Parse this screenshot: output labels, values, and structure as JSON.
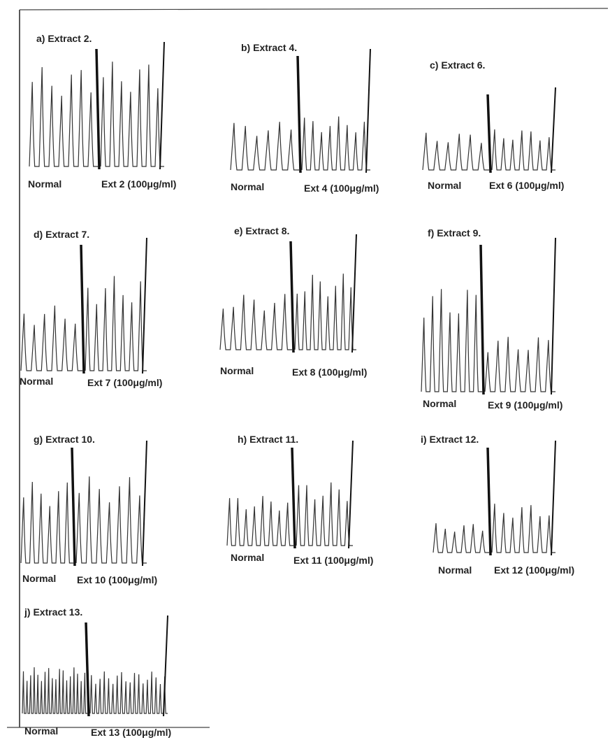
{
  "panels": [
    {
      "title": "a)  Extract 2.",
      "normal_label": "Normal",
      "ext_label": "Ext 2 (100μg/ml)"
    },
    {
      "title": "b)  Extract 4.",
      "normal_label": "Normal",
      "ext_label": "Ext 4 (100μg/ml)"
    },
    {
      "title": "c)  Extract 6.",
      "normal_label": "Normal",
      "ext_label": "Ext 6 (100μg/ml)"
    },
    {
      "title": "d)  Extract 7.",
      "normal_label": "Normal",
      "ext_label": "Ext 7 (100μg/ml)"
    },
    {
      "title": "e)  Extract 8.",
      "normal_label": "Normal",
      "ext_label": "Ext 8 (100μg/ml)"
    },
    {
      "title": "f)  Extract 9.",
      "normal_label": "Normal",
      "ext_label": "Ext 9 (100μg/ml)"
    },
    {
      "title": "g)  Extract 10.",
      "normal_label": "Normal",
      "ext_label": "Ext 10 (100μg/ml)"
    },
    {
      "title": "h)  Extract 11.",
      "normal_label": "Normal",
      "ext_label": "Ext 11 (100μg/ml)"
    },
    {
      "title": "i) Extract 12.",
      "normal_label": "Normal",
      "ext_label": "Ext 12 (100μg/ml)"
    },
    {
      "title": "j)  Extract 13.",
      "normal_label": "Normal",
      "ext_label": "Ext 13 (100μg/ml)"
    }
  ]
}
